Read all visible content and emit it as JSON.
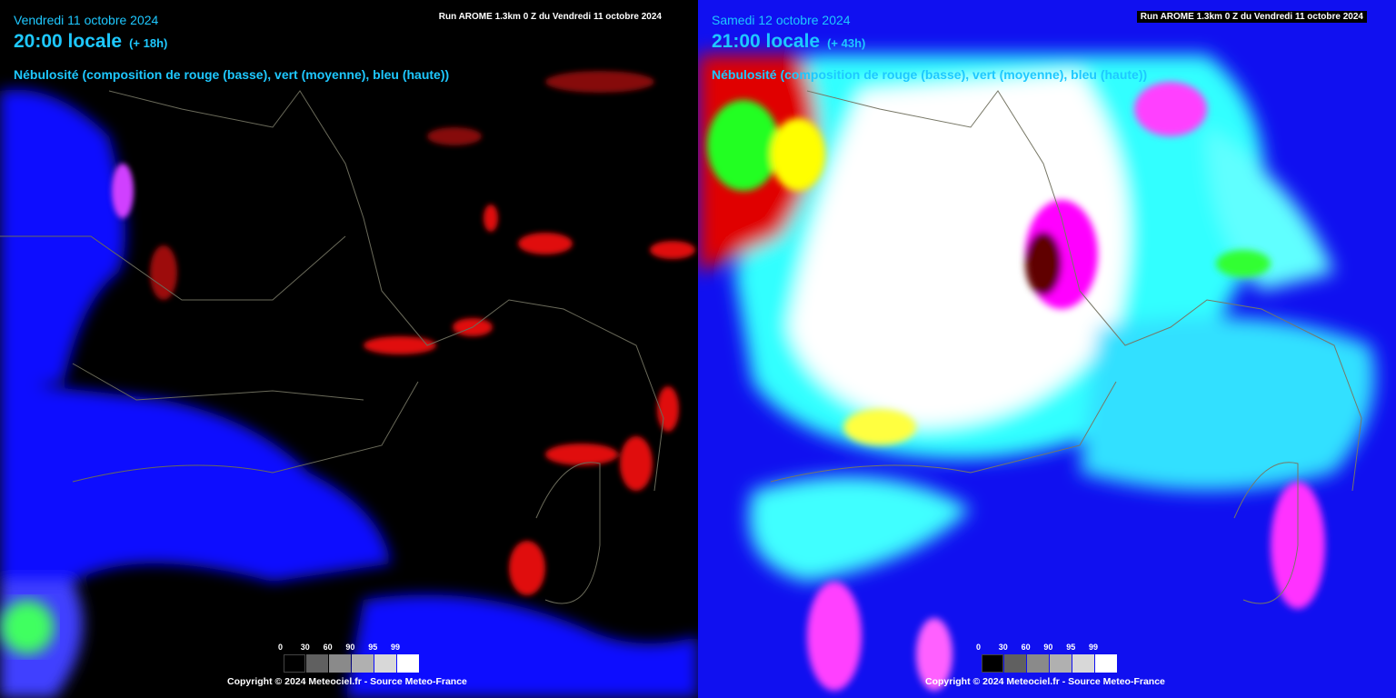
{
  "panels": [
    {
      "date": "Vendredi 11 octobre 2024",
      "time": "20:00 locale",
      "lead": "(+ 18h)",
      "run": "Run AROME 1.3km 0 Z du Vendredi 11 octobre 2024",
      "parameter": "Nébulosité (composition de rouge (basse), vert (moyenne), bleu (haute))",
      "scale": [
        0,
        30,
        60,
        90,
        95,
        99
      ],
      "copyright": "Copyright © 2024 Meteociel.fr - Source Meteo-France"
    },
    {
      "date": "Samedi 12 octobre 2024",
      "time": "21:00 locale",
      "lead": "(+ 43h)",
      "run": "Run AROME 1.3km 0 Z du Vendredi 11 octobre 2024",
      "parameter": "Nébulosité (composition de rouge (basse), vert (moyenne), bleu (haute))",
      "scale": [
        0,
        30,
        60,
        90,
        95,
        99
      ],
      "copyright": "Copyright © 2024 Meteociel.fr - Source Meteo-France"
    }
  ]
}
